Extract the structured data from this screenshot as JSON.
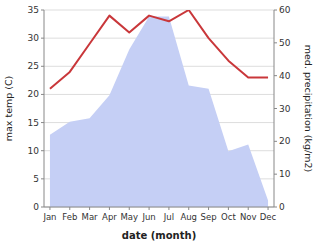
{
  "chart_data": {
    "type": "line",
    "xlabel": "date (month)",
    "ylabel": "max temp (C)",
    "y2label": "med. precipitation (kg/m2)",
    "categories": [
      "Jan",
      "Feb",
      "Mar",
      "Apr",
      "May",
      "Jun",
      "Jul",
      "Aug",
      "Sep",
      "Oct",
      "Nov",
      "Dec"
    ],
    "series": [
      {
        "type": "area",
        "axis": "y2",
        "color": "#c5cff5",
        "values": [
          22,
          26,
          27,
          34,
          48,
          58,
          58,
          37,
          36,
          17,
          19,
          2
        ]
      },
      {
        "type": "line",
        "color": "#c9373a",
        "values": [
          21,
          24,
          29,
          34,
          31,
          34,
          33,
          35,
          30,
          26,
          23,
          23
        ]
      }
    ],
    "ylim": [
      0,
      35
    ],
    "yticks": [
      0,
      5,
      10,
      15,
      20,
      25,
      30,
      35
    ],
    "y2lim": [
      0,
      60
    ],
    "y2ticks": [
      0,
      10,
      20,
      30,
      40,
      50,
      60
    ],
    "grid": true
  }
}
